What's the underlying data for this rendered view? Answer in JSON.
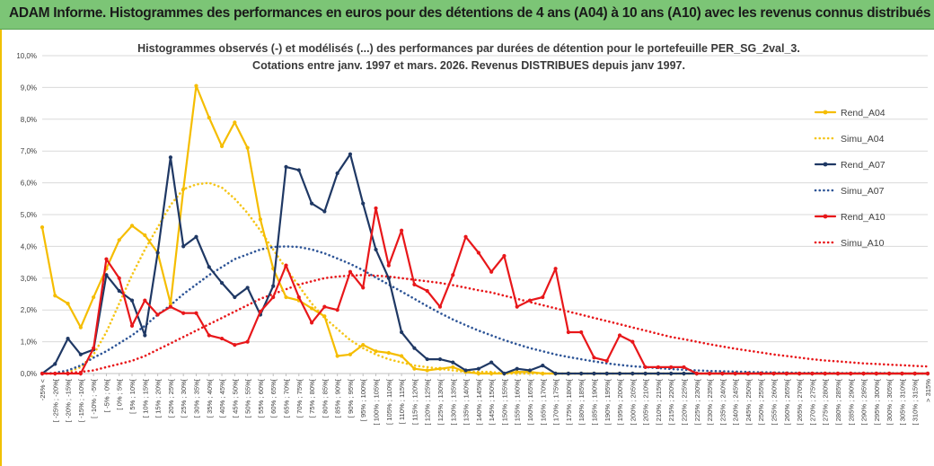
{
  "banner": {
    "title": "ADAM Informe. Histogrammes des performances en euros pour des détentions de 4 ans (A04) à 10 ans (A10) avec les revenus connus distribués"
  },
  "chart_data": {
    "type": "line",
    "title_line1": "Histogrammes observés (-) et modélisés (...) des performances par durées de détention pour le portefeuille PER_SG_2val_3.",
    "title_line2": "Cotations entre janv. 1997 et mars. 2026. Revenus DISTRIBUES depuis janv 1997.",
    "ylim": [
      0,
      10
    ],
    "yticks": [
      "0,0%",
      "1,0%",
      "2,0%",
      "3,0%",
      "4,0%",
      "5,0%",
      "6,0%",
      "7,0%",
      "8,0%",
      "9,0%",
      "10,0%"
    ],
    "categories": [
      "-25% <",
      "[ -25% ; -20%[",
      "[ -20% ; -15%[",
      "[ -15% ; -10%[",
      "[ -10% ; -5%[",
      "[ -5% ; 0%[",
      "[ 0% ; 5%[",
      "[ 5% ; 10%[",
      "[ 10% ; 15%[",
      "[ 15% ; 20%[",
      "[ 20% ; 25%[",
      "[ 25% ; 30%[",
      "[ 30% ; 35%[",
      "[ 35% ; 40%[",
      "[ 40% ; 45%[",
      "[ 45% ; 50%[",
      "[ 50% ; 55%[",
      "[ 55% ; 60%[",
      "[ 60% ; 65%[",
      "[ 65% ; 70%[",
      "[ 70% ; 75%[",
      "[ 75% ; 80%[",
      "[ 80% ; 85%[",
      "[ 85% ; 90%[",
      "[ 90% ; 95%[",
      "[ 95% ; 100%[",
      "[ 100% ; 105%[",
      "[ 105% ; 110%[",
      "[ 110% ; 115%[",
      "[ 115% ; 120%[",
      "[ 120% ; 125%[",
      "[ 125% ; 130%[",
      "[ 130% ; 135%[",
      "[ 135% ; 140%[",
      "[ 140% ; 145%[",
      "[ 145% ; 150%[",
      "[ 150% ; 155%[",
      "[ 155% ; 160%[",
      "[ 160% ; 165%[",
      "[ 165% ; 170%[",
      "[ 170% ; 175%[",
      "[ 175% ; 180%[",
      "[ 180% ; 185%[",
      "[ 185% ; 190%[",
      "[ 190% ; 195%[",
      "[ 195% ; 200%[",
      "[ 200% ; 205%[",
      "[ 205% ; 210%[",
      "[ 210% ; 215%[",
      "[ 215% ; 220%[",
      "[ 220% ; 225%[",
      "[ 225% ; 230%[",
      "[ 230% ; 235%[",
      "[ 235% ; 240%[",
      "[ 240% ; 245%[",
      "[ 245% ; 250%[",
      "[ 250% ; 255%[",
      "[ 255% ; 260%[",
      "[ 260% ; 265%[",
      "[ 265% ; 270%[",
      "[ 270% ; 275%[",
      "[ 275% ; 280%[",
      "[ 280% ; 285%[",
      "[ 285% ; 290%[",
      "[ 290% ; 295%[",
      "[ 295% ; 300%[",
      "[ 300% ; 305%[",
      "[ 305% ; 310%[",
      "[ 310% ; 315%[",
      "> 315%"
    ],
    "series": [
      {
        "name": "Rend_A04",
        "style": "solid",
        "color": "#f5bd00",
        "marker": true,
        "values": [
          4.6,
          2.45,
          2.2,
          1.45,
          2.4,
          3.3,
          4.2,
          4.65,
          4.35,
          3.8,
          2.2,
          5.8,
          9.05,
          8.05,
          7.15,
          7.9,
          7.1,
          4.85,
          3.3,
          2.4,
          2.3,
          2.05,
          1.8,
          0.55,
          0.6,
          0.9,
          0.7,
          0.65,
          0.55,
          0.15,
          0.1,
          0.15,
          0.2,
          0.05,
          0.0,
          0.0,
          0.0,
          0.05,
          0.05,
          0.0,
          0.0,
          0.0,
          0.0,
          0.0,
          0.0,
          0.0,
          0.0,
          0.0,
          0.0,
          0.0,
          0.0,
          0.0,
          0.0,
          0.0,
          0.0,
          0.0,
          0.0,
          0.0,
          0.0,
          0.0,
          0.0,
          0.0,
          0.0,
          0.0,
          0.0,
          0.0,
          0.0,
          0.0,
          0.0,
          0.0
        ]
      },
      {
        "name": "Simu_A04",
        "style": "dotted",
        "color": "#f5c518",
        "marker": false,
        "values": [
          0.0,
          0.0,
          0.05,
          0.2,
          0.6,
          1.3,
          2.2,
          3.1,
          3.9,
          4.6,
          5.3,
          5.8,
          5.95,
          6.0,
          5.85,
          5.5,
          5.05,
          4.5,
          3.9,
          3.3,
          2.75,
          2.2,
          1.75,
          1.4,
          1.05,
          0.8,
          0.6,
          0.45,
          0.35,
          0.25,
          0.2,
          0.15,
          0.1,
          0.05,
          0.05,
          0.05,
          0.0,
          0.0,
          0.0,
          0.0,
          0.0,
          0.0,
          0.0,
          0.0,
          0.0,
          0.0,
          0.0,
          0.0,
          0.0,
          0.0,
          0.0,
          0.0,
          0.0,
          0.0,
          0.0,
          0.0,
          0.0,
          0.0,
          0.0,
          0.0,
          0.0,
          0.0,
          0.0,
          0.0,
          0.0,
          0.0,
          0.0,
          0.0,
          0.0,
          0.0
        ]
      },
      {
        "name": "Rend_A07",
        "style": "solid",
        "color": "#1f3864",
        "marker": true,
        "values": [
          0.0,
          0.3,
          1.1,
          0.6,
          0.75,
          3.1,
          2.6,
          2.3,
          1.2,
          3.8,
          6.8,
          4.0,
          4.3,
          3.35,
          2.85,
          2.4,
          2.7,
          1.85,
          2.75,
          6.5,
          6.4,
          5.35,
          5.1,
          6.3,
          6.9,
          5.35,
          3.9,
          3.0,
          1.3,
          0.8,
          0.45,
          0.45,
          0.35,
          0.1,
          0.15,
          0.35,
          0.0,
          0.15,
          0.1,
          0.25,
          0.0,
          0.0,
          0.0,
          0.0,
          0.0,
          0.0,
          0.0,
          0.0,
          0.0,
          0.0,
          0.0,
          0.0,
          0.0,
          0.0,
          0.0,
          0.0,
          0.0,
          0.0,
          0.0,
          0.0,
          0.0,
          0.0,
          0.0,
          0.0,
          0.0,
          0.0,
          0.0,
          0.0,
          0.0,
          0.0
        ]
      },
      {
        "name": "Simu_A07",
        "style": "dotted",
        "color": "#2e5597",
        "marker": false,
        "values": [
          0.0,
          0.02,
          0.1,
          0.25,
          0.5,
          0.7,
          0.95,
          1.2,
          1.5,
          1.85,
          2.15,
          2.5,
          2.8,
          3.1,
          3.35,
          3.6,
          3.75,
          3.9,
          3.98,
          4.0,
          3.98,
          3.9,
          3.78,
          3.62,
          3.45,
          3.25,
          3.02,
          2.8,
          2.58,
          2.35,
          2.12,
          1.9,
          1.7,
          1.52,
          1.35,
          1.2,
          1.05,
          0.92,
          0.8,
          0.7,
          0.6,
          0.52,
          0.45,
          0.38,
          0.32,
          0.27,
          0.23,
          0.2,
          0.17,
          0.14,
          0.12,
          0.1,
          0.08,
          0.07,
          0.06,
          0.05,
          0.04,
          0.03,
          0.03,
          0.02,
          0.02,
          0.02,
          0.01,
          0.01,
          0.01,
          0.01,
          0.01,
          0.0,
          0.0,
          0.0
        ]
      },
      {
        "name": "Rend_A10",
        "style": "solid",
        "color": "#e8171a",
        "marker": true,
        "values": [
          0.0,
          0.0,
          0.0,
          0.0,
          0.8,
          3.6,
          3.0,
          1.5,
          2.3,
          1.85,
          2.1,
          1.9,
          1.9,
          1.2,
          1.1,
          0.9,
          1.0,
          1.95,
          2.4,
          3.4,
          2.4,
          1.6,
          2.1,
          2.0,
          3.2,
          2.7,
          5.2,
          3.4,
          4.5,
          2.8,
          2.6,
          2.1,
          3.1,
          4.3,
          3.8,
          3.2,
          3.7,
          2.1,
          2.3,
          2.4,
          3.3,
          1.3,
          1.3,
          0.5,
          0.4,
          1.2,
          1.0,
          0.2,
          0.2,
          0.2,
          0.2,
          0.0,
          0.0,
          0.0,
          0.0,
          0.0,
          0.0,
          0.0,
          0.0,
          0.0,
          0.0,
          0.0,
          0.0,
          0.0,
          0.0,
          0.0,
          0.0,
          0.0,
          0.0,
          0.0
        ]
      },
      {
        "name": "Simu_A10",
        "style": "dotted",
        "color": "#e8171a",
        "marker": false,
        "values": [
          0.0,
          0.0,
          0.02,
          0.05,
          0.1,
          0.2,
          0.3,
          0.4,
          0.55,
          0.75,
          0.95,
          1.15,
          1.35,
          1.55,
          1.75,
          1.95,
          2.15,
          2.35,
          2.5,
          2.65,
          2.8,
          2.9,
          3.0,
          3.05,
          3.08,
          3.1,
          3.08,
          3.05,
          3.0,
          2.95,
          2.9,
          2.85,
          2.78,
          2.7,
          2.62,
          2.55,
          2.45,
          2.35,
          2.25,
          2.15,
          2.05,
          1.95,
          1.85,
          1.75,
          1.65,
          1.55,
          1.45,
          1.35,
          1.25,
          1.15,
          1.08,
          1.0,
          0.92,
          0.85,
          0.78,
          0.72,
          0.66,
          0.6,
          0.55,
          0.5,
          0.45,
          0.41,
          0.38,
          0.35,
          0.32,
          0.3,
          0.28,
          0.26,
          0.24,
          0.22
        ]
      }
    ],
    "legend_position": "right"
  }
}
